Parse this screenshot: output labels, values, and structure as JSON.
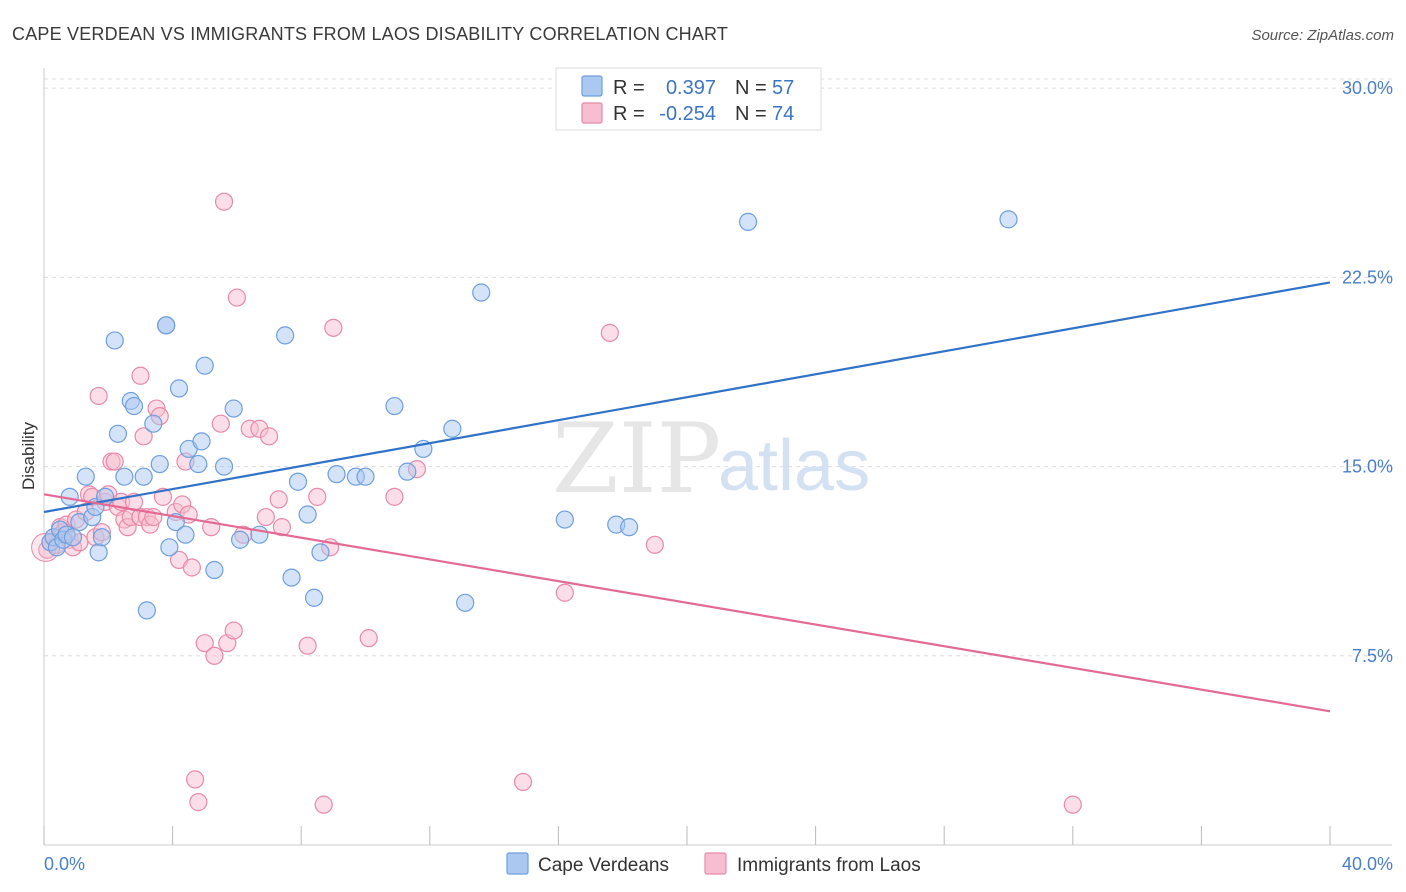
{
  "title": "CAPE VERDEAN VS IMMIGRANTS FROM LAOS DISABILITY CORRELATION CHART",
  "source": "Source: ZipAtlas.com",
  "watermark": {
    "zip": "ZIP",
    "atlas": "atlas"
  },
  "colors": {
    "blue_fill": "#aac8f0",
    "blue_stroke": "#6f9fde",
    "blue_line": "#2f72c8",
    "pink_fill": "#f7bdd0",
    "pink_stroke": "#e88aa9",
    "pink_line": "#e36a95",
    "tick_text": "#4a7fc9",
    "grid": "#dddddd"
  },
  "legend": {
    "rows": [
      {
        "r_label": "R =",
        "r_value": "0.397",
        "n_label": "N =",
        "n_value": "57"
      },
      {
        "r_label": "R =",
        "r_value": "-0.254",
        "n_label": "N =",
        "n_value": "74"
      }
    ]
  },
  "bottom_legend": [
    "Cape Verdeans",
    "Immigrants from Laos"
  ],
  "chart_data": {
    "type": "scatter",
    "title": "CAPE VERDEAN VS IMMIGRANTS FROM LAOS DISABILITY CORRELATION CHART",
    "xlabel": "",
    "ylabel": "Disability",
    "xlim": [
      0,
      40
    ],
    "ylim": [
      0,
      30.8
    ],
    "x_tick_labels": [
      "0.0%",
      "40.0%"
    ],
    "y_ticks": [
      7.5,
      15.0,
      22.5,
      30.0
    ],
    "y_tick_labels": [
      "7.5%",
      "15.0%",
      "22.5%",
      "30.0%"
    ],
    "grid": "horizontal dashed",
    "legend_position": "top-center",
    "series": [
      {
        "name": "Cape Verdeans",
        "color": "#aac8f0",
        "trend": {
          "x": [
            0,
            40
          ],
          "y": [
            13.2,
            22.3
          ]
        },
        "points": [
          [
            0.2,
            12.0
          ],
          [
            0.3,
            12.2
          ],
          [
            0.4,
            11.8
          ],
          [
            0.5,
            12.5
          ],
          [
            0.6,
            12.1
          ],
          [
            0.7,
            12.3
          ],
          [
            0.8,
            13.8
          ],
          [
            0.9,
            12.2
          ],
          [
            1.1,
            12.8
          ],
          [
            1.3,
            14.6
          ],
          [
            1.5,
            13.0
          ],
          [
            1.6,
            13.4
          ],
          [
            1.7,
            11.6
          ],
          [
            1.8,
            12.2
          ],
          [
            1.9,
            13.8
          ],
          [
            2.2,
            20.0
          ],
          [
            2.3,
            16.3
          ],
          [
            2.5,
            14.6
          ],
          [
            2.7,
            17.6
          ],
          [
            2.8,
            17.4
          ],
          [
            3.1,
            14.6
          ],
          [
            3.2,
            9.3
          ],
          [
            3.4,
            16.7
          ],
          [
            3.6,
            15.1
          ],
          [
            3.8,
            20.6
          ],
          [
            3.8,
            20.6
          ],
          [
            3.9,
            11.8
          ],
          [
            4.1,
            12.8
          ],
          [
            4.2,
            18.1
          ],
          [
            4.4,
            12.3
          ],
          [
            4.5,
            15.7
          ],
          [
            4.8,
            15.1
          ],
          [
            4.9,
            16.0
          ],
          [
            5.0,
            19.0
          ],
          [
            5.3,
            10.9
          ],
          [
            5.6,
            15.0
          ],
          [
            5.9,
            17.3
          ],
          [
            6.1,
            12.1
          ],
          [
            6.7,
            12.3
          ],
          [
            7.5,
            20.2
          ],
          [
            7.7,
            10.6
          ],
          [
            7.9,
            14.4
          ],
          [
            8.2,
            13.1
          ],
          [
            8.4,
            9.8
          ],
          [
            8.6,
            11.6
          ],
          [
            9.1,
            14.7
          ],
          [
            9.7,
            14.6
          ],
          [
            10.0,
            14.6
          ],
          [
            10.9,
            17.4
          ],
          [
            11.3,
            14.8
          ],
          [
            11.8,
            15.7
          ],
          [
            12.7,
            16.5
          ],
          [
            13.1,
            9.6
          ],
          [
            13.6,
            21.9
          ],
          [
            16.2,
            12.9
          ],
          [
            17.8,
            12.7
          ],
          [
            18.2,
            12.6
          ],
          [
            21.9,
            24.7
          ],
          [
            30.0,
            24.8
          ]
        ]
      },
      {
        "name": "Immigrants from Laos",
        "color": "#f7bdd0",
        "trend": {
          "x": [
            0,
            40
          ],
          "y": [
            13.9,
            5.3
          ]
        },
        "points": [
          [
            0.1,
            11.7
          ],
          [
            0.2,
            12.0
          ],
          [
            0.3,
            12.2
          ],
          [
            0.4,
            11.9
          ],
          [
            0.5,
            12.6
          ],
          [
            0.6,
            12.4
          ],
          [
            0.7,
            12.7
          ],
          [
            0.8,
            12.1
          ],
          [
            0.9,
            11.8
          ],
          [
            1.0,
            12.9
          ],
          [
            1.1,
            12.0
          ],
          [
            1.3,
            13.2
          ],
          [
            1.4,
            13.9
          ],
          [
            1.5,
            13.8
          ],
          [
            1.6,
            12.2
          ],
          [
            1.7,
            17.8
          ],
          [
            1.8,
            12.4
          ],
          [
            1.9,
            13.6
          ],
          [
            2.0,
            13.9
          ],
          [
            2.1,
            15.2
          ],
          [
            2.2,
            15.2
          ],
          [
            2.3,
            13.4
          ],
          [
            2.4,
            13.6
          ],
          [
            2.5,
            12.9
          ],
          [
            2.6,
            12.6
          ],
          [
            2.7,
            13.0
          ],
          [
            2.8,
            13.6
          ],
          [
            3.0,
            13.0
          ],
          [
            3.0,
            18.6
          ],
          [
            3.1,
            16.2
          ],
          [
            3.2,
            13.0
          ],
          [
            3.3,
            12.7
          ],
          [
            3.4,
            13.0
          ],
          [
            3.5,
            17.3
          ],
          [
            3.6,
            17.0
          ],
          [
            3.7,
            13.8
          ],
          [
            4.1,
            13.2
          ],
          [
            4.2,
            11.3
          ],
          [
            4.3,
            13.5
          ],
          [
            4.4,
            15.2
          ],
          [
            4.5,
            13.1
          ],
          [
            4.6,
            11.0
          ],
          [
            4.7,
            2.6
          ],
          [
            4.8,
            1.7
          ],
          [
            5.0,
            8.0
          ],
          [
            5.2,
            12.6
          ],
          [
            5.3,
            7.5
          ],
          [
            5.5,
            16.7
          ],
          [
            5.6,
            25.5
          ],
          [
            5.7,
            8.0
          ],
          [
            5.9,
            8.5
          ],
          [
            6.0,
            21.7
          ],
          [
            6.2,
            12.3
          ],
          [
            6.4,
            16.5
          ],
          [
            6.7,
            16.5
          ],
          [
            6.9,
            13.0
          ],
          [
            7.0,
            16.2
          ],
          [
            7.3,
            13.7
          ],
          [
            7.4,
            12.6
          ],
          [
            8.2,
            7.9
          ],
          [
            8.5,
            13.8
          ],
          [
            8.7,
            1.6
          ],
          [
            8.9,
            11.8
          ],
          [
            9.0,
            20.5
          ],
          [
            10.1,
            8.2
          ],
          [
            10.9,
            13.8
          ],
          [
            11.6,
            14.9
          ],
          [
            14.9,
            2.5
          ],
          [
            16.2,
            10.0
          ],
          [
            17.6,
            20.3
          ],
          [
            19.0,
            11.9
          ],
          [
            32.0,
            1.6
          ]
        ]
      }
    ]
  }
}
